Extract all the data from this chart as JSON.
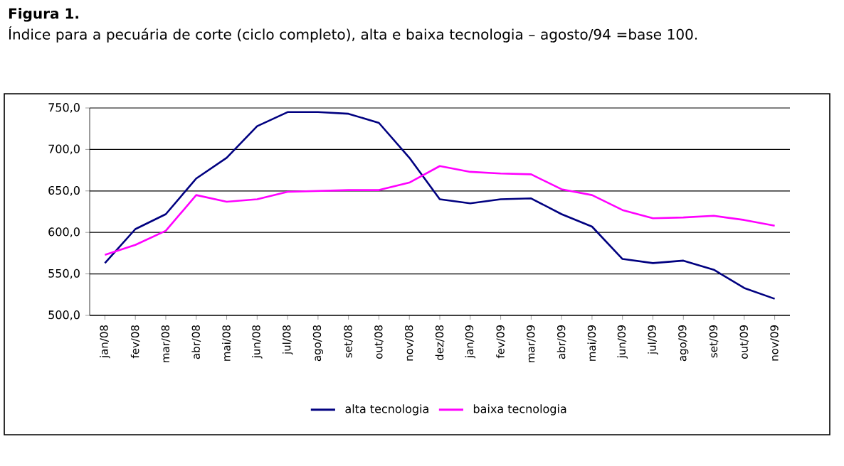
{
  "chart_data": {
    "type": "line",
    "title": "Figura 1.",
    "subtitle": "Índice para a pecuária de corte (ciclo completo), alta e baixa tecnologia – agosto/94 =base 100.",
    "categories": [
      "jan/08",
      "fev/08",
      "mar/08",
      "abr/08",
      "mai/08",
      "jun/08",
      "jul/08",
      "ago/08",
      "set/08",
      "out/08",
      "nov/08",
      "dez/08",
      "jan/09",
      "fev/09",
      "mar/09",
      "abr/09",
      "mai/09",
      "jun/09",
      "jul/09",
      "ago/09",
      "set/09",
      "out/09",
      "nov/09"
    ],
    "series": [
      {
        "name": "alta tecnologia",
        "color": "#000080",
        "values": [
          563,
          604,
          622,
          665,
          690,
          728,
          745,
          745,
          743,
          732,
          690,
          640,
          635,
          640,
          641,
          622,
          607,
          568,
          563,
          566,
          555,
          533,
          520
        ]
      },
      {
        "name": "baixa tecnologia",
        "color": "#ff00ff",
        "values": [
          573,
          585,
          602,
          645,
          637,
          640,
          649,
          650,
          651,
          651,
          660,
          680,
          673,
          671,
          670,
          652,
          645,
          627,
          617,
          618,
          620,
          615,
          608
        ]
      }
    ],
    "ylim": [
      500,
      750
    ],
    "yticks": [
      {
        "value": 500,
        "label": "500,0"
      },
      {
        "value": 550,
        "label": "550,0"
      },
      {
        "value": 600,
        "label": "600,0"
      },
      {
        "value": 650,
        "label": "650,0"
      },
      {
        "value": 700,
        "label": "700,0"
      },
      {
        "value": 750,
        "label": "750,0"
      }
    ],
    "grid": "y",
    "legend": "bottom",
    "marker": "none",
    "line_style": "solid"
  }
}
